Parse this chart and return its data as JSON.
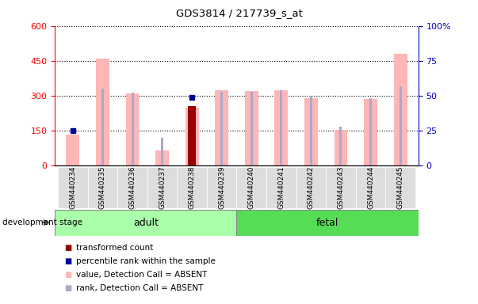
{
  "title": "GDS3814 / 217739_s_at",
  "samples": [
    "GSM440234",
    "GSM440235",
    "GSM440236",
    "GSM440237",
    "GSM440238",
    "GSM440239",
    "GSM440240",
    "GSM440241",
    "GSM440242",
    "GSM440243",
    "GSM440244",
    "GSM440245"
  ],
  "n_adult": 6,
  "n_fetal": 6,
  "value_absent": [
    135,
    460,
    310,
    65,
    250,
    325,
    320,
    325,
    290,
    155,
    285,
    480
  ],
  "rank_absent": [
    null,
    55,
    52,
    20,
    null,
    53,
    53,
    54,
    50,
    28,
    48,
    57
  ],
  "transformed_count": [
    null,
    null,
    null,
    null,
    255,
    null,
    null,
    null,
    null,
    null,
    null,
    null
  ],
  "percentile_rank": [
    25,
    null,
    null,
    null,
    49,
    null,
    null,
    null,
    null,
    null,
    null,
    null
  ],
  "left_axis_color": "#FF0000",
  "right_axis_color": "#0000CC",
  "bar_pink": "#FFB6B6",
  "bar_lightblue": "#AAAACC",
  "bar_darkred": "#990000",
  "bar_darkblue": "#000099",
  "left_ylim": [
    0,
    600
  ],
  "right_ylim": [
    0,
    100
  ],
  "left_yticks": [
    0,
    150,
    300,
    450,
    600
  ],
  "right_yticks": [
    0,
    25,
    50,
    75,
    100
  ],
  "right_yticklabels": [
    "0",
    "25",
    "50",
    "75",
    "100%"
  ],
  "adult_color": "#AAFFAA",
  "fetal_color": "#55DD55",
  "stage_label": "development stage",
  "legend_items": [
    {
      "label": "transformed count",
      "color": "#990000"
    },
    {
      "label": "percentile rank within the sample",
      "color": "#000099"
    },
    {
      "label": "value, Detection Call = ABSENT",
      "color": "#FFB6B6"
    },
    {
      "label": "rank, Detection Call = ABSENT",
      "color": "#AAAACC"
    }
  ]
}
